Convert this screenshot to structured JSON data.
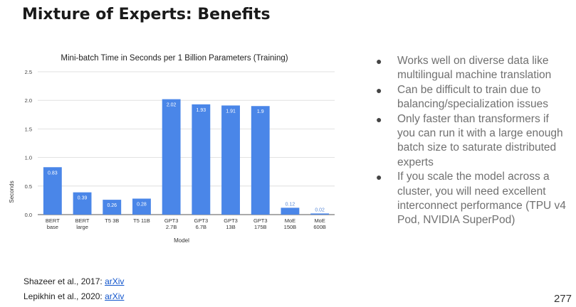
{
  "title": "Mixture of Experts: Benefits",
  "chart_data": {
    "type": "bar",
    "title": "Mini-batch Time in Seconds per 1 Billion Parameters (Training)",
    "xlabel": "Model",
    "ylabel": "Seconds",
    "ylim": [
      0,
      2.5
    ],
    "yticks": [
      "0.0",
      "0.5",
      "1.0",
      "1.5",
      "2.0",
      "2.5"
    ],
    "grid": true,
    "bar_color": "#4a86e8",
    "categories": [
      [
        "BERT",
        "base"
      ],
      [
        "BERT",
        "large"
      ],
      [
        "T5 3B"
      ],
      [
        "T5 11B"
      ],
      [
        "GPT3",
        "2.7B"
      ],
      [
        "GPT3",
        "6.7B"
      ],
      [
        "GPT3",
        "13B"
      ],
      [
        "GPT3",
        "175B"
      ],
      [
        "MoE",
        "150B"
      ],
      [
        "MoE",
        "600B"
      ]
    ],
    "values": [
      0.83,
      0.39,
      0.26,
      0.28,
      2.02,
      1.93,
      1.91,
      1.9,
      0.12,
      0.02
    ],
    "value_labels": [
      "0.83",
      "0.39",
      "0.26",
      "0.28",
      "2.02",
      "1.93",
      "1.91",
      "1.9",
      "0.12",
      "0.02"
    ]
  },
  "bullets": [
    "Works well on diverse data like multilingual machine translation",
    "Can be difficult to train due to balancing/specialization issues",
    "Only faster than transformers if you can run it with a large enough batch size to saturate distributed experts",
    "If you scale the model across a cluster, you will need  excellent interconnect performance (TPU v4 Pod, NVIDIA SuperPod)"
  ],
  "bullet_symbol": "●",
  "references": [
    {
      "text": "Shazeer et al., 2017: ",
      "link": "arXiv"
    },
    {
      "text": "Lepikhin et al., 2020: ",
      "link": "arXiv"
    }
  ],
  "page_number": "277"
}
